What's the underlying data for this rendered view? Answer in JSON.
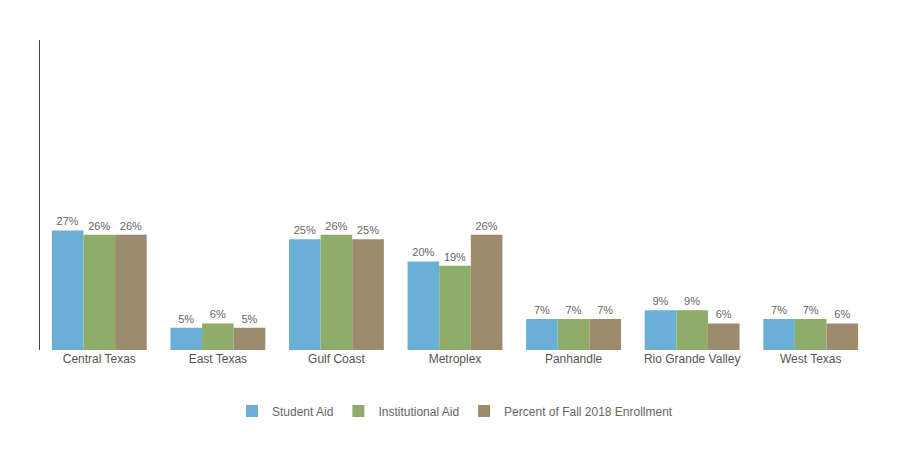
{
  "chart_data": {
    "type": "bar",
    "categories": [
      "Central Texas",
      "East Texas",
      "Gulf Coast",
      "Metroplex",
      "Panhandle",
      "Rio Grande Valley",
      "West Texas"
    ],
    "series": [
      {
        "name": "Student Aid",
        "color": "#6AAFD6",
        "values": [
          27,
          5,
          25,
          20,
          7,
          9,
          7
        ],
        "value_labels": [
          "27%",
          "5%",
          "25%",
          "20%",
          "7%",
          "9%",
          "7%"
        ]
      },
      {
        "name": "Institutional Aid",
        "color": "#8EAD6A",
        "values": [
          26,
          6,
          26,
          19,
          7,
          9,
          7
        ],
        "value_labels": [
          "26%",
          "6%",
          "26%",
          "19%",
          "7%",
          "9%",
          "7%"
        ]
      },
      {
        "name": "Percent of Fall 2018 Enrollment",
        "color": "#9E8B6E",
        "values": [
          26,
          5,
          25,
          26,
          7,
          6,
          6
        ],
        "value_labels": [
          "26%",
          "5%",
          "25%",
          "26%",
          "7%",
          "6%",
          "6%"
        ]
      }
    ],
    "ylim": [
      0,
      70
    ],
    "grid": false,
    "legend": "bottom",
    "data_labels": true,
    "tick_labels": "x"
  }
}
